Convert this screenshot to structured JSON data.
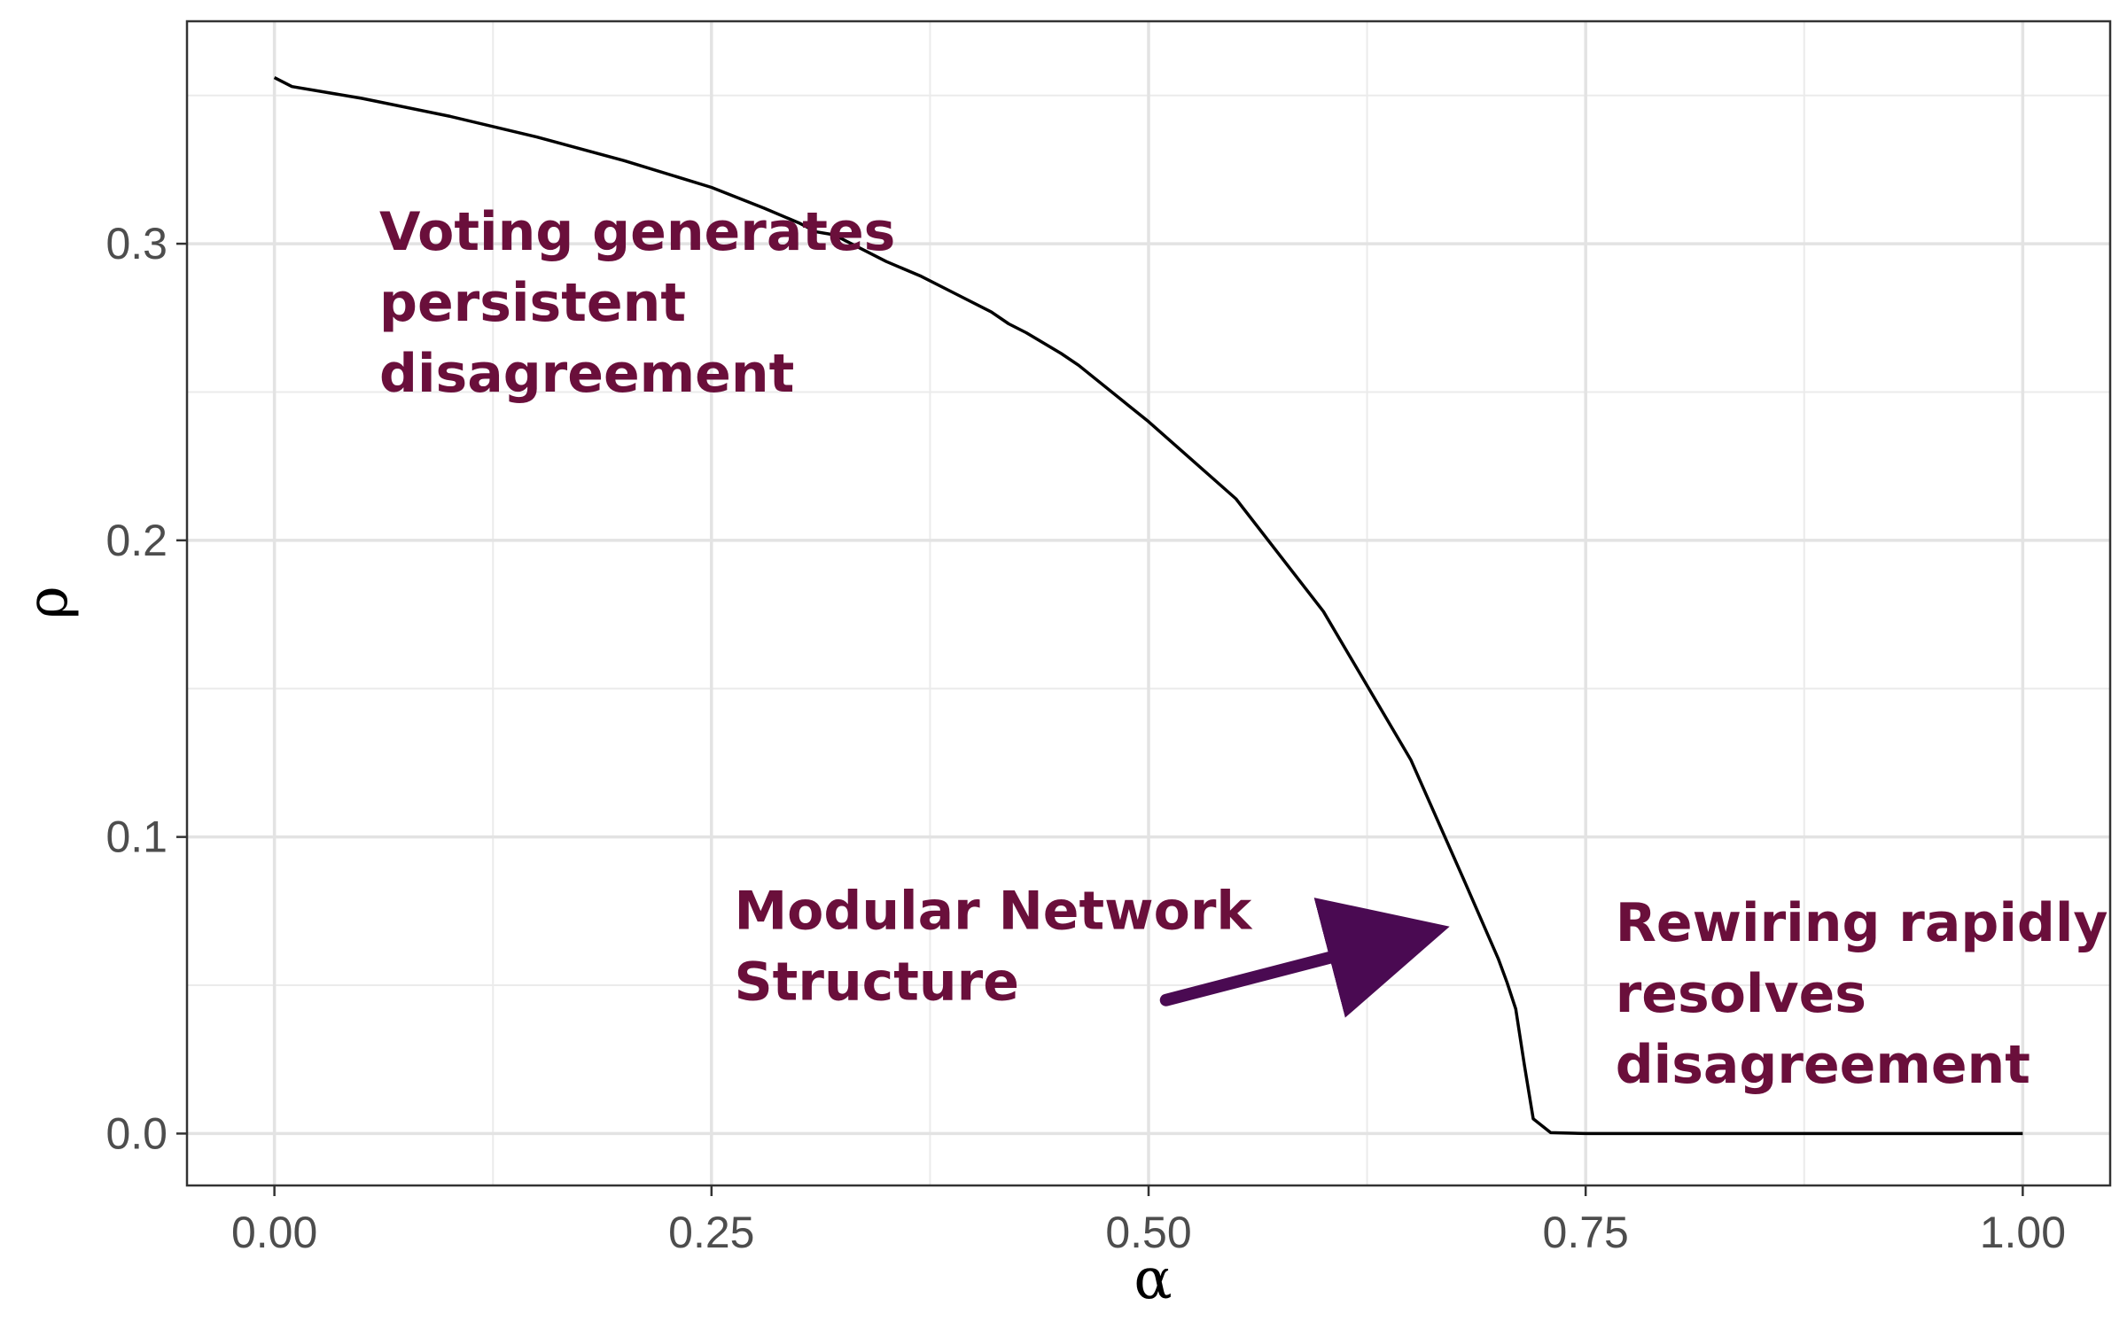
{
  "chart_data": {
    "type": "line",
    "title": "",
    "xlabel": "α",
    "ylabel": "ρ",
    "xlim": [
      -0.05,
      1.05
    ],
    "ylim": [
      -0.0175,
      0.375
    ],
    "xticks": [
      0.0,
      0.25,
      0.5,
      0.75,
      1.0
    ],
    "xtick_labels": [
      "0.00",
      "0.25",
      "0.50",
      "0.75",
      "1.00"
    ],
    "yticks": [
      0.0,
      0.1,
      0.2,
      0.3
    ],
    "ytick_labels": [
      "0.0",
      "0.1",
      "0.2",
      "0.3"
    ],
    "grid": true,
    "line_color": "#000000",
    "series": [
      {
        "x": [
          0.0,
          0.01,
          0.05,
          0.1,
          0.15,
          0.2,
          0.25,
          0.28,
          0.3,
          0.31,
          0.32,
          0.33,
          0.35,
          0.37,
          0.39,
          0.41,
          0.42,
          0.43,
          0.45,
          0.46,
          0.5,
          0.55,
          0.6,
          0.65,
          0.68,
          0.7,
          0.705,
          0.71,
          0.715,
          0.72,
          0.73,
          0.75,
          0.8,
          0.9,
          1.0
        ],
        "y": [
          0.356,
          0.353,
          0.349,
          0.343,
          0.336,
          0.328,
          0.319,
          0.312,
          0.307,
          0.304,
          0.303,
          0.3,
          0.294,
          0.289,
          0.283,
          0.277,
          0.273,
          0.27,
          0.263,
          0.259,
          0.24,
          0.214,
          0.176,
          0.126,
          0.086,
          0.059,
          0.051,
          0.042,
          0.023,
          0.005,
          0.0003,
          0.0,
          0.0,
          0.0,
          0.0
        ]
      }
    ],
    "annotations": [
      {
        "lines": [
          "Voting generates",
          "persistent",
          "disagreement"
        ],
        "x": 0.06,
        "y": 0.298,
        "color": "#6a0f3b"
      },
      {
        "lines": [
          "Modular Network",
          "Structure"
        ],
        "x": 0.263,
        "y": 0.069,
        "color": "#6a0f3b"
      },
      {
        "lines": [
          "Rewiring rapidly",
          "resolves",
          "disagreement"
        ],
        "x": 0.767,
        "y": 0.065,
        "color": "#6a0f3b"
      }
    ],
    "arrow": {
      "from": [
        0.51,
        0.045
      ],
      "to": [
        0.665,
        0.068
      ],
      "color": "#4a0a52"
    }
  }
}
